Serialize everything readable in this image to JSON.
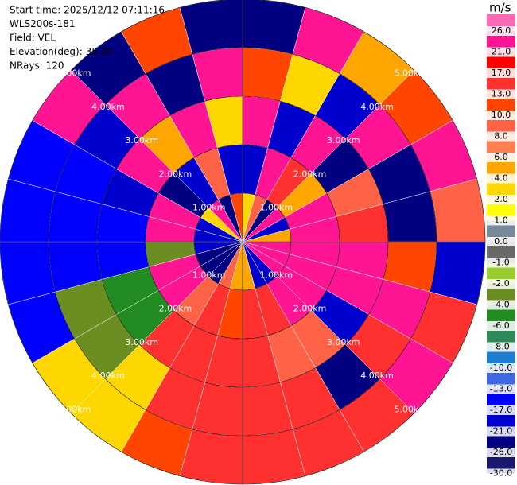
{
  "chart_data": {
    "type": "ppi",
    "annotations": [
      "Start time: 2025/12/12 07:11:16",
      "WLS200s-181",
      "Field: VEL",
      "Elevation(deg): 35.00",
      "NRays: 120"
    ],
    "colorbar_label": "m/s",
    "rlim": [
      0,
      5
    ],
    "range_rings": [
      {
        "value": 1,
        "label": "1.00km"
      },
      {
        "value": 2,
        "label": "2.00km"
      },
      {
        "value": 3,
        "label": "3.00km"
      },
      {
        "value": 4,
        "label": "4.00km"
      },
      {
        "value": 5,
        "label": "5.00km"
      }
    ],
    "colorbar_ticks": [
      {
        "value": 26,
        "label": "26.0"
      },
      {
        "value": 21,
        "label": "21.0"
      },
      {
        "value": 17,
        "label": "17.0"
      },
      {
        "value": 13,
        "label": "13.0"
      },
      {
        "value": 10,
        "label": "10.0"
      },
      {
        "value": 8,
        "label": "8.0"
      },
      {
        "value": 6,
        "label": "6.0"
      },
      {
        "value": 4,
        "label": "4.0"
      },
      {
        "value": 2,
        "label": "2.0"
      },
      {
        "value": 1,
        "label": "1.0"
      },
      {
        "value": 0,
        "label": "0.0"
      },
      {
        "value": -1,
        "label": "-1.0"
      },
      {
        "value": -2,
        "label": "-2.0"
      },
      {
        "value": -4,
        "label": "-4.0"
      },
      {
        "value": -6,
        "label": "-6.0"
      },
      {
        "value": -8,
        "label": "-8.0"
      },
      {
        "value": -10,
        "label": "-10.0"
      },
      {
        "value": -13,
        "label": "-13.0"
      },
      {
        "value": -17,
        "label": "-17.0"
      },
      {
        "value": -21,
        "label": "-21.0"
      },
      {
        "value": -26,
        "label": "-26.0"
      },
      {
        "value": -30,
        "label": "-30.0"
      }
    ],
    "colors": [
      "#ff69b4",
      "#ff1493",
      "#ff0000",
      "#ff3030",
      "#ff4500",
      "#ff6347",
      "#ff7f50",
      "#ffa500",
      "#ffd700",
      "#ffff00",
      "#778899",
      "#696969",
      "#9acd32",
      "#6b8e23",
      "#228b22",
      "#2e8b57",
      "#1e7fd0",
      "#4169e1",
      "#0000ff",
      "#0000cd",
      "#000080",
      "#191970"
    ],
    "sectors": [
      [
        3,
        -20,
        24,
        12,
        -25
      ],
      [
        9,
        24,
        -20,
        3,
        22
      ],
      [
        -22,
        15,
        24,
        -18,
        5
      ],
      [
        24,
        5,
        -22,
        23,
        12
      ],
      [
        -20,
        22,
        9,
        -23,
        24
      ],
      [
        5,
        22,
        14,
        -23,
        9
      ],
      [
        22,
        23,
        22,
        10,
        -20
      ],
      [
        22,
        23,
        22,
        24,
        15
      ],
      [
        22,
        22,
        -20,
        15,
        24
      ],
      [
        -20,
        22,
        9,
        -22,
        15
      ],
      [
        -20,
        15,
        9,
        16,
        15
      ],
      [
        5,
        16,
        15,
        16,
        15
      ],
      [
        5,
        12,
        15,
        16,
        16
      ],
      [
        9,
        14,
        15,
        14,
        12
      ],
      [
        -22,
        9,
        13,
        3,
        2
      ],
      [
        -22,
        24,
        -5,
        -3,
        3
      ],
      [
        -22,
        24,
        -5,
        -3,
        -15
      ],
      [
        -20,
        -3,
        -15,
        -15,
        -15
      ],
      [
        -20,
        24,
        -15,
        -15,
        -15
      ],
      [
        -20,
        24,
        -18,
        -15,
        -16
      ],
      [
        3,
        -22,
        24,
        -20,
        23
      ],
      [
        24,
        -20,
        5,
        22,
        -22
      ],
      [
        -22,
        9,
        24,
        -25,
        12
      ],
      [
        12,
        -20,
        3,
        24,
        -22
      ]
    ]
  }
}
